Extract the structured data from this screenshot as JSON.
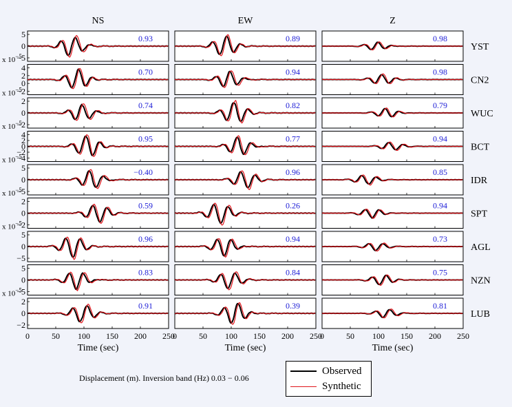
{
  "chart_data": {
    "type": "line",
    "layout": "grid 9 stations x 3 components of waveform fits",
    "columns": [
      "NS",
      "EW",
      "Z"
    ],
    "stations": [
      "YST",
      "CN2",
      "WUC",
      "BCT",
      "IDR",
      "SPT",
      "AGL",
      "NZN",
      "LUB"
    ],
    "correlations": [
      [
        "0.93",
        "0.89",
        "0.98"
      ],
      [
        "0.70",
        "0.94",
        "0.98"
      ],
      [
        "0.74",
        "0.82",
        "0.79"
      ],
      [
        "0.95",
        "0.77",
        "0.94"
      ],
      [
        "−0.40",
        "0.96",
        "0.85"
      ],
      [
        "0.59",
        "0.26",
        "0.94"
      ],
      [
        "0.96",
        "0.94",
        "0.73"
      ],
      [
        "0.83",
        "0.84",
        "0.75"
      ],
      [
        "0.91",
        "0.39",
        "0.81"
      ]
    ],
    "ns_yticks": [
      [
        "5",
        "0",
        "−5"
      ],
      [
        "4",
        "2",
        "0",
        "−2"
      ],
      [
        "2",
        "0",
        "−2"
      ],
      [
        "4",
        "2",
        "0",
        "−2",
        "−4"
      ],
      [
        "5",
        "0",
        "−5"
      ],
      [
        "2",
        "0",
        "−2"
      ],
      [
        "5",
        "0",
        "−5"
      ],
      [
        "5",
        "0",
        "−5"
      ],
      [
        "2",
        "0",
        "−2"
      ]
    ],
    "scale_label": "x 10",
    "scale_exp": "−5",
    "x_ticks": [
      "0",
      "50",
      "100",
      "150",
      "200",
      "250"
    ],
    "xlabel": "Time (sec)",
    "xlim": [
      0,
      250
    ],
    "legend": [
      "Observed",
      "Synthetic"
    ],
    "colors": {
      "observed": "#000000",
      "synthetic": "#e0141a",
      "correlation_text": "#1c1cd6",
      "background": "#f1f3fa"
    },
    "caption": "Displacement (m).  Inversion band (Hz)  0.03 − 0.06"
  }
}
